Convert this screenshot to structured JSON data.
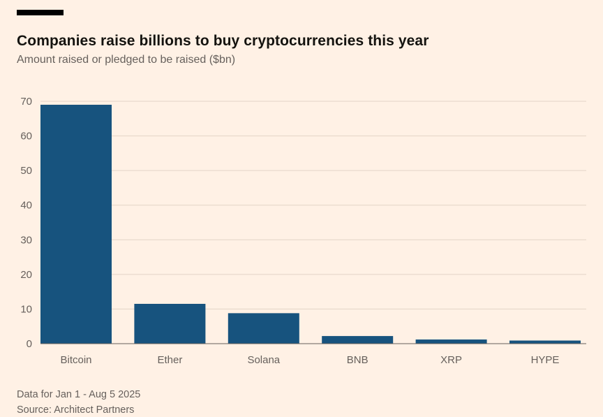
{
  "page": {
    "title": "Companies raise billions to buy cryptocurrencies this year",
    "subtitle": "Amount raised or pledged to be raised ($bn)",
    "footnote": "Data for Jan 1 - Aug 5 2025",
    "source": "Source: Architect Partners"
  },
  "colors": {
    "background": "#FFF1E5",
    "bar": "#17537E",
    "grid": "#E3D4C6",
    "baseline": "#66605C",
    "axis_text": "#66605C",
    "title_text": "#14130F"
  },
  "chart_data": {
    "type": "bar",
    "title": "Companies raise billions to buy cryptocurrencies this year",
    "subtitle": "Amount raised or pledged to be raised ($bn)",
    "categories": [
      "Bitcoin",
      "Ether",
      "Solana",
      "BNB",
      "XRP",
      "HYPE"
    ],
    "values": [
      69,
      11.5,
      8.8,
      2.2,
      1.2,
      0.9
    ],
    "xlabel": "",
    "ylabel": "Amount raised or pledged to be raised ($bn)",
    "ylim": [
      0,
      70
    ],
    "yticks": [
      0,
      10,
      20,
      30,
      40,
      50,
      60,
      70
    ],
    "grid": true,
    "legend": false,
    "footnote": "Data for Jan 1 - Aug 5 2025",
    "source": "Source: Architect Partners"
  }
}
